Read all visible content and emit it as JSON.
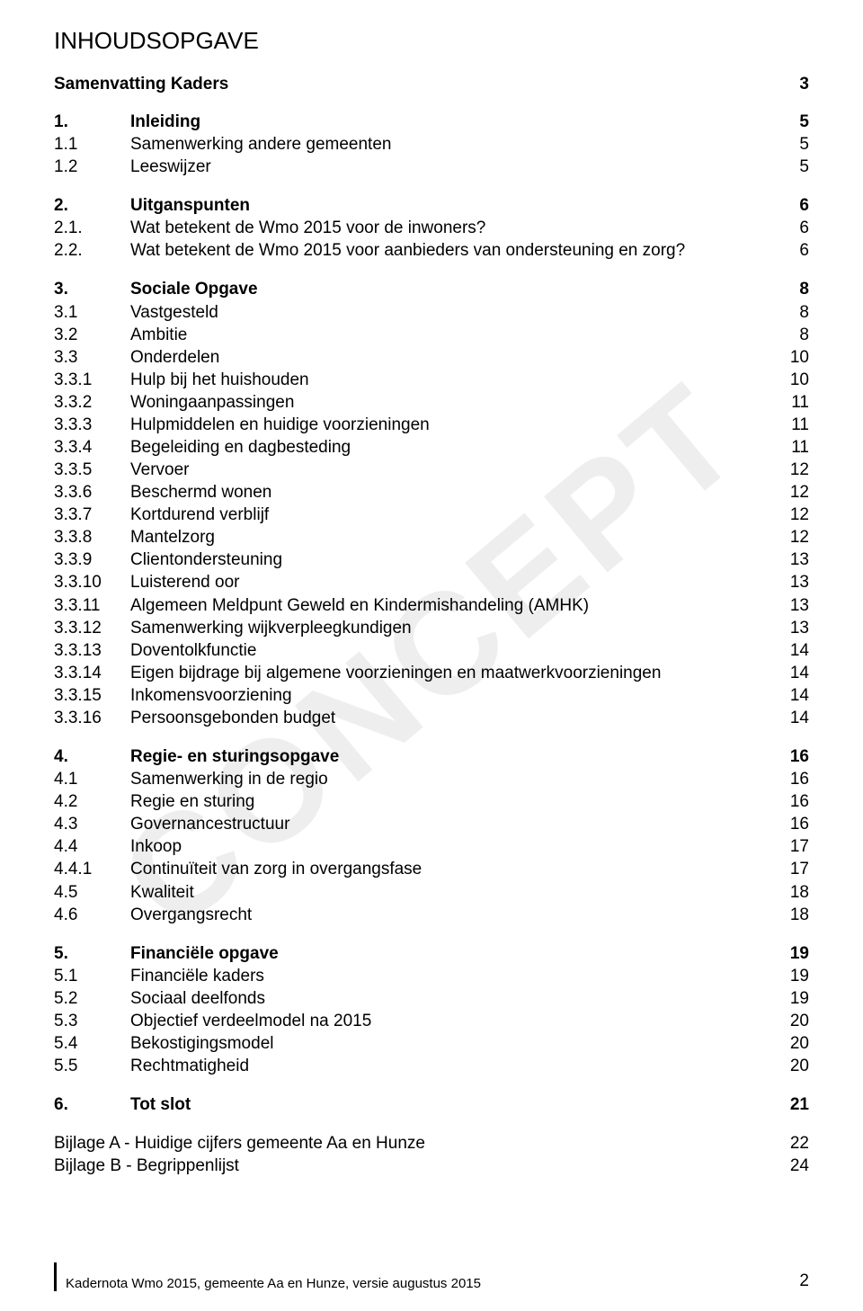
{
  "colors": {
    "text": "#000000",
    "background": "#ffffff",
    "watermark": "#eeeeee"
  },
  "typography": {
    "font_family": "Arial",
    "title_fontsize": 26,
    "body_fontsize": 19,
    "footer_fontsize": 15
  },
  "watermark": "CONCEPT",
  "main_title": "INHOUDSOPGAVE",
  "samenvatting": {
    "label": "Samenvatting Kaders",
    "page": "3"
  },
  "sections": [
    {
      "head": {
        "num": "1.",
        "text": "Inleiding",
        "page": "5"
      },
      "rows": [
        {
          "num": "1.1",
          "text": "Samenwerking andere gemeenten",
          "page": "5"
        },
        {
          "num": "1.2",
          "text": "Leeswijzer",
          "page": "5"
        }
      ]
    },
    {
      "head": {
        "num": "2.",
        "text": "Uitganspunten",
        "page": "6"
      },
      "rows": [
        {
          "num": "2.1.",
          "text": "Wat betekent de Wmo 2015 voor de inwoners?",
          "page": "6"
        },
        {
          "num": "2.2.",
          "text": "Wat betekent de Wmo 2015 voor aanbieders van ondersteuning en zorg?",
          "page": "6"
        }
      ]
    },
    {
      "head": {
        "num": "3.",
        "text": "Sociale Opgave",
        "page": "8"
      },
      "rows": [
        {
          "num": "3.1",
          "text": "Vastgesteld",
          "page": "8"
        },
        {
          "num": "3.2",
          "text": "Ambitie",
          "page": "8"
        },
        {
          "num": "3.3",
          "text": "Onderdelen",
          "page": "10"
        },
        {
          "num": "3.3.1",
          "text": "Hulp bij het huishouden",
          "page": "10"
        },
        {
          "num": "3.3.2",
          "text": "Woningaanpassingen",
          "page": "11"
        },
        {
          "num": "3.3.3",
          "text": "Hulpmiddelen en huidige voorzieningen",
          "page": "11"
        },
        {
          "num": "3.3.4",
          "text": "Begeleiding en dagbesteding",
          "page": "11"
        },
        {
          "num": "3.3.5",
          "text": "Vervoer",
          "page": "12"
        },
        {
          "num": "3.3.6",
          "text": "Beschermd wonen",
          "page": "12"
        },
        {
          "num": "3.3.7",
          "text": "Kortdurend verblijf",
          "page": "12"
        },
        {
          "num": "3.3.8",
          "text": "Mantelzorg",
          "page": "12"
        },
        {
          "num": "3.3.9",
          "text": "Clientondersteuning",
          "page": "13"
        },
        {
          "num": "3.3.10",
          "text": "Luisterend oor",
          "page": "13"
        },
        {
          "num": "3.3.11",
          "text": "Algemeen Meldpunt Geweld en Kindermishandeling (AMHK)",
          "page": "13"
        },
        {
          "num": "3.3.12",
          "text": "Samenwerking wijkverpleegkundigen",
          "page": "13"
        },
        {
          "num": "3.3.13",
          "text": "Doventolkfunctie",
          "page": "14"
        },
        {
          "num": "3.3.14",
          "text": "Eigen bijdrage bij algemene voorzieningen en maatwerkvoorzieningen",
          "page": "14"
        },
        {
          "num": "3.3.15",
          "text": "Inkomensvoorziening",
          "page": "14"
        },
        {
          "num": "3.3.16",
          "text": "Persoonsgebonden budget",
          "page": "14"
        }
      ]
    },
    {
      "head": {
        "num": "4.",
        "text": "Regie- en sturingsopgave",
        "page": "16"
      },
      "rows": [
        {
          "num": "4.1",
          "text": "Samenwerking in de regio",
          "page": "16"
        },
        {
          "num": "4.2",
          "text": "Regie en sturing",
          "page": "16"
        },
        {
          "num": "4.3",
          "text": "Governancestructuur",
          "page": "16"
        },
        {
          "num": "4.4",
          "text": "Inkoop",
          "page": "17"
        },
        {
          "num": "4.4.1",
          "text": "Continuïteit van zorg in overgangsfase",
          "page": "17"
        },
        {
          "num": "4.5",
          "text": "Kwaliteit",
          "page": "18"
        },
        {
          "num": "4.6",
          "text": "Overgangsrecht",
          "page": "18"
        }
      ]
    },
    {
      "head": {
        "num": "5.",
        "text": "Financiële opgave",
        "page": "19"
      },
      "rows": [
        {
          "num": "5.1",
          "text": "Financiële kaders",
          "page": "19"
        },
        {
          "num": "5.2",
          "text": "Sociaal deelfonds",
          "page": "19"
        },
        {
          "num": "5.3",
          "text": "Objectief verdeelmodel na 2015",
          "page": "20"
        },
        {
          "num": "5.4",
          "text": "Bekostigingsmodel",
          "page": "20"
        },
        {
          "num": "5.5",
          "text": "Rechtmatigheid",
          "page": "20"
        }
      ]
    },
    {
      "head": {
        "num": "6.",
        "text": "Tot slot",
        "page": "21"
      },
      "rows": []
    }
  ],
  "appendices": [
    {
      "text": "Bijlage A - Huidige cijfers gemeente Aa en Hunze",
      "page": "22"
    },
    {
      "text": "Bijlage B - Begrippenlijst",
      "page": "24"
    }
  ],
  "footer": {
    "text": "Kadernota Wmo 2015, gemeente Aa en Hunze, versie augustus 2015",
    "page_number": "2"
  }
}
